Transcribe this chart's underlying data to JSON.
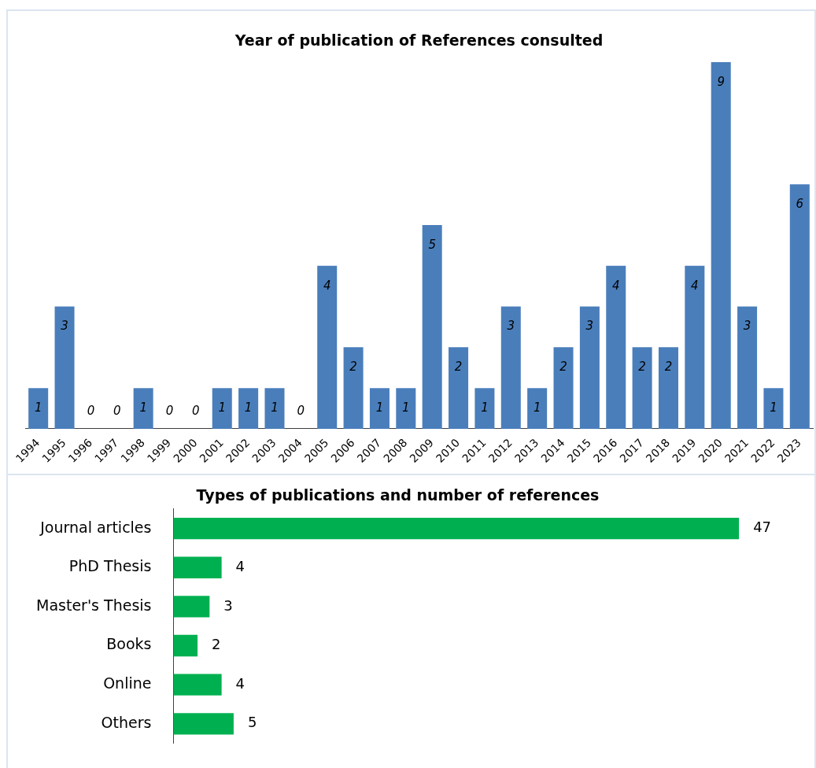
{
  "chart_data": [
    {
      "type": "bar",
      "title": "Year of publication of References consulted",
      "categories": [
        "1994",
        "1995",
        "1996",
        "1997",
        "1998",
        "1999",
        "2000",
        "2001",
        "2002",
        "2003",
        "2004",
        "2005",
        "2006",
        "2007",
        "2008",
        "2009",
        "2010",
        "2011",
        "2012",
        "2013",
        "2014",
        "2015",
        "2016",
        "2017",
        "2018",
        "2019",
        "2020",
        "2021",
        "2022",
        "2023"
      ],
      "values": [
        1,
        3,
        0,
        0,
        1,
        0,
        0,
        1,
        1,
        1,
        0,
        4,
        2,
        1,
        1,
        5,
        2,
        1,
        3,
        1,
        2,
        3,
        4,
        2,
        2,
        4,
        9,
        3,
        1,
        6
      ],
      "color": "#4a7ebb",
      "data_labels": true,
      "tick_labels": "x"
    },
    {
      "type": "bar",
      "orientation": "horizontal",
      "title": "Types of publications and number of references",
      "categories": [
        "Journal articles",
        "PhD Thesis",
        "Master's Thesis",
        "Books",
        "Online",
        "Others"
      ],
      "values": [
        47,
        4,
        3,
        2,
        4,
        5
      ],
      "color": "#00b050",
      "data_labels": true,
      "tick_labels": "y"
    }
  ]
}
